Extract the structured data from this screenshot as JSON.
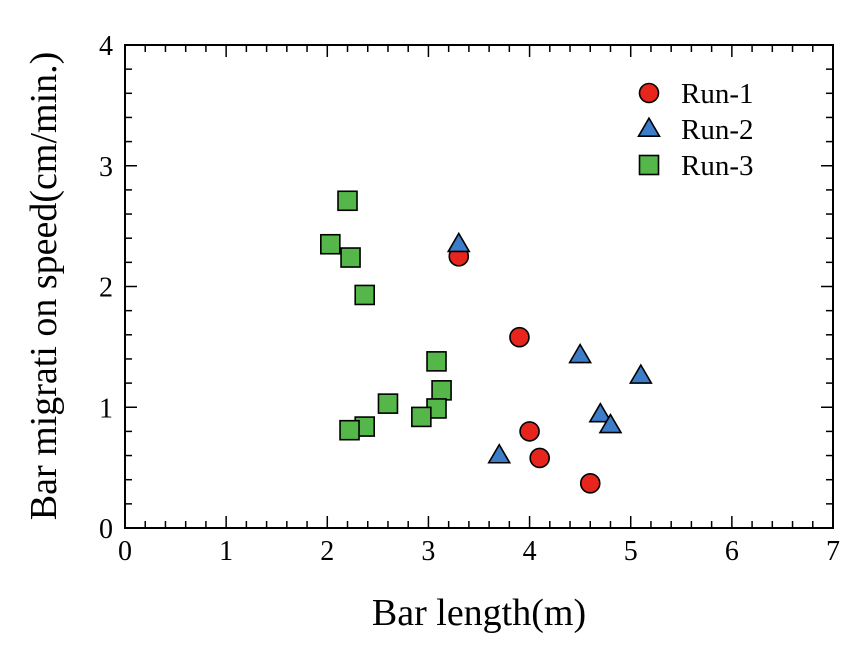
{
  "chart_data": {
    "type": "scatter",
    "xlabel": "Bar length(m)",
    "ylabel": "Bar migrati on speed(cm/min.)",
    "xlim": [
      0,
      7
    ],
    "ylim": [
      0,
      4
    ],
    "xticks": [
      0,
      1,
      2,
      3,
      4,
      5,
      6,
      7
    ],
    "yticks": [
      0,
      1,
      2,
      3,
      4
    ],
    "grid": false,
    "legend_position": "top-right",
    "series": [
      {
        "name": "Run-1",
        "marker": "circle",
        "color": "#e8251c",
        "points": [
          {
            "x": 3.3,
            "y": 2.25
          },
          {
            "x": 3.9,
            "y": 1.58
          },
          {
            "x": 4.0,
            "y": 0.8
          },
          {
            "x": 4.1,
            "y": 0.58
          },
          {
            "x": 4.6,
            "y": 0.37
          }
        ]
      },
      {
        "name": "Run-2",
        "marker": "triangle",
        "color": "#3d7cc9",
        "points": [
          {
            "x": 3.3,
            "y": 2.35
          },
          {
            "x": 4.5,
            "y": 1.43
          },
          {
            "x": 5.1,
            "y": 1.26
          },
          {
            "x": 4.7,
            "y": 0.94
          },
          {
            "x": 4.8,
            "y": 0.85
          },
          {
            "x": 3.7,
            "y": 0.6
          }
        ]
      },
      {
        "name": "Run-3",
        "marker": "square",
        "color": "#55b64a",
        "points": [
          {
            "x": 2.2,
            "y": 2.71
          },
          {
            "x": 2.03,
            "y": 2.35
          },
          {
            "x": 2.23,
            "y": 2.24
          },
          {
            "x": 2.37,
            "y": 1.93
          },
          {
            "x": 3.08,
            "y": 1.38
          },
          {
            "x": 3.13,
            "y": 1.14
          },
          {
            "x": 2.6,
            "y": 1.03
          },
          {
            "x": 3.08,
            "y": 0.99
          },
          {
            "x": 2.93,
            "y": 0.92
          },
          {
            "x": 2.37,
            "y": 0.84
          },
          {
            "x": 2.22,
            "y": 0.81
          }
        ]
      }
    ]
  }
}
